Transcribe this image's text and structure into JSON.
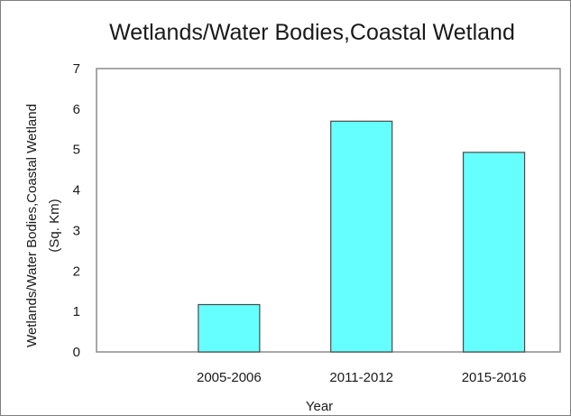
{
  "chart_data": {
    "type": "bar",
    "title": "Wetlands/Water Bodies,Coastal Wetland",
    "xlabel": "Year",
    "ylabel_line1": "Wetlands/Water Bodies,Coastal Wetland",
    "ylabel_line2": "(Sq. Km)",
    "categories": [
      "2005-2006",
      "2011-2012",
      "2015-2016"
    ],
    "values": [
      1.17,
      5.7,
      4.93
    ],
    "ylim": [
      0,
      7
    ],
    "yticks": [
      0,
      1,
      2,
      3,
      4,
      5,
      6,
      7
    ],
    "grid": false,
    "legend": "none",
    "bar_color": "#66ffff",
    "bar_edge_color": "#4a4a4a"
  }
}
